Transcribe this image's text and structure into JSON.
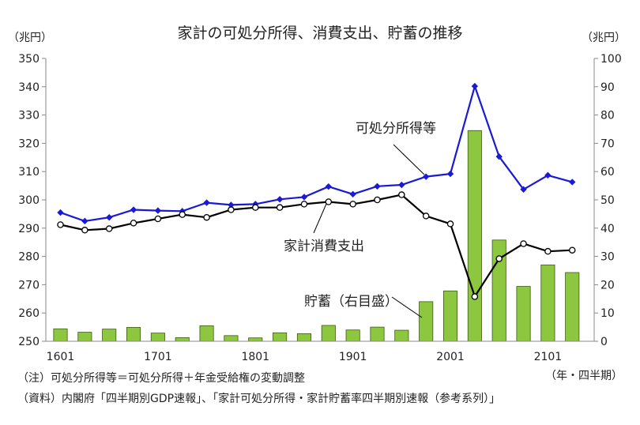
{
  "chart_data": {
    "type": "bar+line",
    "title": "家計の可処分所得、消費支出、貯蓄の推移",
    "left_unit": "（兆円）",
    "right_unit": "（兆円）",
    "x_axis_label": "（年・四半期）",
    "x_tick_labels": [
      "1601",
      "1701",
      "1801",
      "1901",
      "2001",
      "2101"
    ],
    "left_y": {
      "min": 250,
      "max": 350,
      "step": 10,
      "ticks": [
        "250",
        "260",
        "270",
        "280",
        "290",
        "300",
        "310",
        "320",
        "330",
        "340",
        "350"
      ]
    },
    "right_y": {
      "min": 0,
      "max": 100,
      "step": 10,
      "ticks": [
        "0",
        "10",
        "20",
        "30",
        "40",
        "50",
        "60",
        "70",
        "80",
        "90",
        "100"
      ]
    },
    "categories": [
      "1601",
      "1602",
      "1603",
      "1604",
      "1701",
      "1702",
      "1703",
      "1704",
      "1801",
      "1802",
      "1803",
      "1804",
      "1901",
      "1902",
      "1903",
      "1904",
      "2001",
      "2002",
      "2003",
      "2004",
      "2101",
      "2102"
    ],
    "series": [
      {
        "name": "可処分所得等",
        "type": "line",
        "axis": "left",
        "color": "#1a1ad6",
        "marker": "diamond",
        "values": [
          295.5,
          292.5,
          293.8,
          296.5,
          296.2,
          296.0,
          299.0,
          298.2,
          298.5,
          300.2,
          301.0,
          304.7,
          302.0,
          304.8,
          305.3,
          308.2,
          309.2,
          340.2,
          315.3,
          303.7,
          308.7,
          306.3
        ]
      },
      {
        "name": "家計消費支出",
        "type": "line",
        "axis": "left",
        "color": "#000000",
        "marker": "circle",
        "values": [
          291.2,
          289.3,
          289.8,
          291.8,
          293.3,
          294.8,
          293.8,
          296.5,
          297.3,
          297.3,
          298.5,
          299.3,
          298.5,
          300.0,
          301.8,
          294.3,
          291.5,
          265.8,
          279.2,
          284.5,
          281.8,
          282.2
        ]
      },
      {
        "name": "貯蓄（右目盛）",
        "type": "bar",
        "axis": "right",
        "color": "#8dc63f",
        "values": [
          4.4,
          3.2,
          4.3,
          4.9,
          2.9,
          1.3,
          5.5,
          2.0,
          1.2,
          3.0,
          2.7,
          5.6,
          4.0,
          5.0,
          3.9,
          14.0,
          17.8,
          74.5,
          35.8,
          19.4,
          27.0,
          24.3
        ]
      }
    ],
    "labels": {
      "income": "可処分所得等",
      "consumption": "家計消費支出",
      "savings": "貯蓄（右目盛）"
    }
  },
  "notes": {
    "note1": "（注）可処分所得等＝可処分所得＋年金受給権の変動調整",
    "note2": "（資料）内閣府「四半期別GDP速報」、「家計可処分所得・家計貯蓄率四半期別速報（参考系列）」"
  }
}
